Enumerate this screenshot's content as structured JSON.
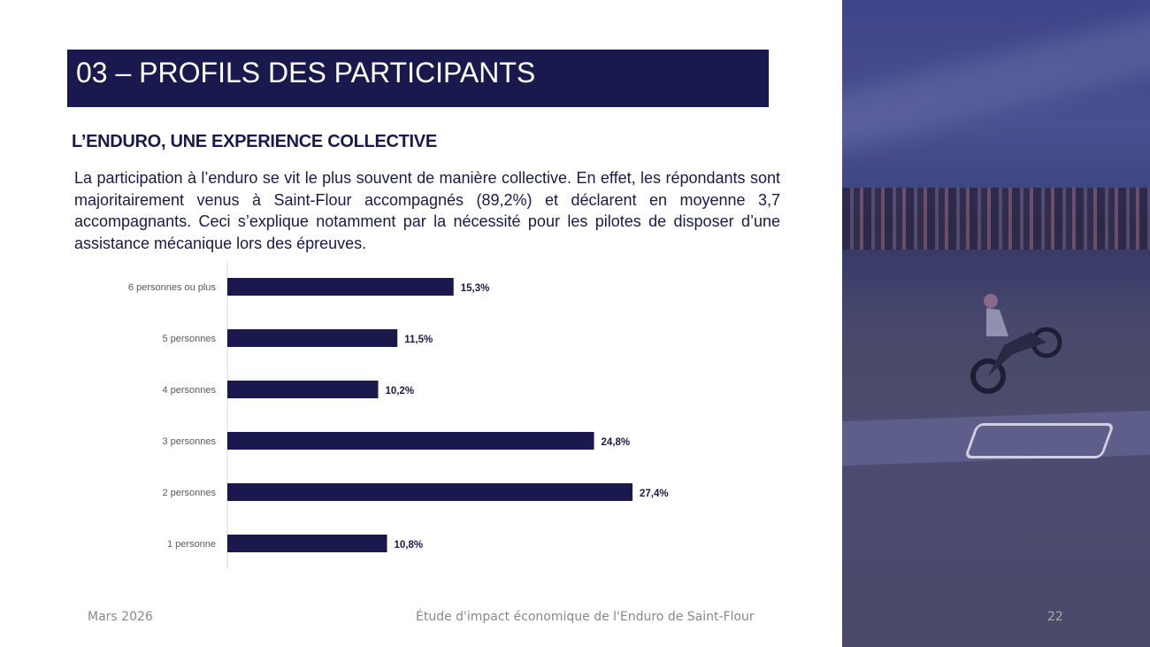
{
  "header": {
    "title": "03 – PROFILS DES PARTICIPANTS"
  },
  "section": {
    "subtitle": "L’ENDURO, UNE EXPERIENCE COLLECTIVE",
    "paragraph": "La participation à l’enduro se vit le plus souvent de manière collective. En effet, les répondants sont majoritairement venus à Saint-Flour accompagnés (89,2%) et déclarent en moyenne 3,7 accompagnants. Ceci s’explique notamment par la nécessité pour les pilotes de disposer d’une assistance mécanique lors des épreuves."
  },
  "chart_data": {
    "type": "bar",
    "orientation": "horizontal",
    "categories": [
      "6 personnes ou plus",
      "5 personnes",
      "4 personnes",
      "3 personnes",
      "2 personnes",
      "1 personne"
    ],
    "values": [
      15.3,
      11.5,
      10.2,
      24.8,
      27.4,
      10.8
    ],
    "value_labels": [
      "15,3%",
      "11,5%",
      "10,2%",
      "24,8%",
      "27,4%",
      "10,8%"
    ],
    "title": "",
    "xlabel": "",
    "ylabel": "",
    "xlim": [
      0,
      30
    ],
    "grid": false,
    "bar_color": "#19194d"
  },
  "footer": {
    "date": "Mars 2026",
    "study": "Étude d'impact économique de l'Enduro de Saint-Flour",
    "page": "22"
  },
  "colors": {
    "brand": "#19194d"
  }
}
